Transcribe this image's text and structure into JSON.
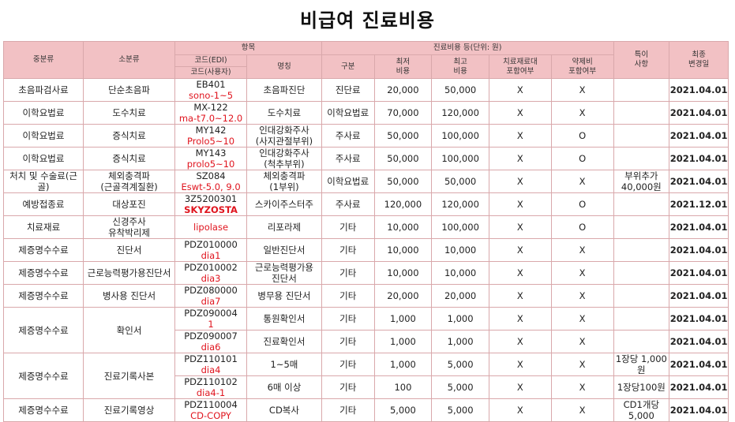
{
  "title": "비급여 진료비용",
  "headers": {
    "major": "중분류",
    "minor": "소분류",
    "item_group": "항목",
    "code_edi": "코드(EDI)",
    "code_internal": "코드(사용자)",
    "name": "명칭",
    "cost_group": "진료비용 등(단위: 원)",
    "category": "구분",
    "min_line1": "최저",
    "min_line2": "비용",
    "max_line1": "최고",
    "max_line2": "비용",
    "material_line1": "치료재료대",
    "material_line2": "포함여부",
    "drug_line1": "약제비",
    "drug_line2": "포함여부",
    "special_line1": "특이",
    "special_line2": "사항",
    "date_line1": "최종",
    "date_line2": "변경일"
  },
  "rows": {
    "r1": {
      "major": "초음파검사료",
      "minor": "단순초음파",
      "code1": "EB401",
      "code2": "sono-1~5",
      "name": "초음파진단",
      "cat": "진단료",
      "min": "20,000",
      "max": "50,000",
      "mat": "X",
      "drug": "X",
      "note": "",
      "date": "2021.04.01"
    },
    "r2": {
      "major": "이학요법료",
      "minor": "도수치료",
      "code1": "MX-122",
      "code2": "ma-t7.0~12.0",
      "name": "도수치료",
      "cat": "이학요법료",
      "min": "70,000",
      "max": "120,000",
      "mat": "X",
      "drug": "X",
      "note": "",
      "date": "2021.04.01"
    },
    "r3": {
      "major": "이학요법료",
      "minor": "증식치료",
      "code1": "MY142",
      "code2": "Prolo5~10",
      "name1": "인대강화주사",
      "name2": "(사지관절부위)",
      "cat": "주사료",
      "min": "50,000",
      "max": "100,000",
      "mat": "X",
      "drug": "O",
      "note": "",
      "date": "2021.04.01"
    },
    "r4": {
      "major": "이학요법료",
      "minor": "증식치료",
      "code1": "MY143",
      "code2": "prolo5~10",
      "name1": "인대강화주사",
      "name2": "(척추부위)",
      "cat": "주사료",
      "min": "50,000",
      "max": "100,000",
      "mat": "X",
      "drug": "O",
      "note": "",
      "date": "2021.04.01"
    },
    "r5": {
      "major": "처치 및 수술료(근골)",
      "minor1": "체외충격파",
      "minor2": "(근골격계질환)",
      "code1": "SZ084",
      "code2": "Eswt-5.0, 9.0",
      "name1": "체외충격파",
      "name2": "(1부위)",
      "cat": "이학요법료",
      "min": "50,000",
      "max": "50,000",
      "mat": "X",
      "drug": "X",
      "note1": "부위추가",
      "note2": "40,000원",
      "date": "2021.04.01"
    },
    "r6": {
      "major": "예방접종료",
      "minor": "대상포진",
      "code1": "3Z5200301",
      "code2": "SKYZOSTA",
      "name": "스카이주스터주",
      "cat": "주사료",
      "min": "120,000",
      "max": "120,000",
      "mat": "X",
      "drug": "O",
      "note": "",
      "date": "2021.12.01"
    },
    "r7": {
      "major": "치료재료",
      "minor1": "신경주사",
      "minor2": "유착박리제",
      "code1": "",
      "code2": "lipolase",
      "name": "리포라제",
      "cat": "기타",
      "min": "10,000",
      "max": "100,000",
      "mat": "X",
      "drug": "O",
      "note": "",
      "date": "2021.04.01"
    },
    "r8": {
      "major": "제증명수수료",
      "minor": "진단서",
      "code1": "PDZ010000",
      "code2": "dia1",
      "name": "일반진단서",
      "cat": "기타",
      "min": "10,000",
      "max": "10,000",
      "mat": "X",
      "drug": "X",
      "note": "",
      "date": "2021.04.01"
    },
    "r9": {
      "major": "제증명수수료",
      "minor": "근로능력평가용진단서",
      "code1": "PDZ010002",
      "code2": "dia3",
      "name1": "근로능력평가용",
      "name2": "진단서",
      "cat": "기타",
      "min": "10,000",
      "max": "10,000",
      "mat": "X",
      "drug": "X",
      "note": "",
      "date": "2021.04.01"
    },
    "r10": {
      "major": "제증명수수료",
      "minor": "병사용 진단서",
      "code1": "PDZ080000",
      "code2": "dia7",
      "name": "병무용 진단서",
      "cat": "기타",
      "min": "20,000",
      "max": "20,000",
      "mat": "X",
      "drug": "X",
      "note": "",
      "date": "2021.04.01"
    },
    "r11": {
      "major": "제증명수수료",
      "minor": "확인서",
      "code1": "PDZ090004",
      "code2": "1",
      "name": "통원확인서",
      "cat": "기타",
      "min": "1,000",
      "max": "1,000",
      "mat": "X",
      "drug": "X",
      "note": "",
      "date": "2021.04.01"
    },
    "r12": {
      "code1": "PDZ090007",
      "code2": "dia6",
      "name": "진료확인서",
      "cat": "기타",
      "min": "1,000",
      "max": "1,000",
      "mat": "X",
      "drug": "X",
      "note": "",
      "date": "2021.04.01"
    },
    "r13": {
      "major": "제증명수수료",
      "minor": "진료기록사본",
      "code1": "PDZ110101",
      "code2": "dia4",
      "name": "1~5매",
      "cat": "기타",
      "min": "1,000",
      "max": "5,000",
      "mat": "X",
      "drug": "X",
      "note": "1장당 1,000원",
      "date": "2021.04.01"
    },
    "r14": {
      "code1": "PDZ110102",
      "code2": "dia4-1",
      "name": "6매 이상",
      "cat": "기타",
      "min": "100",
      "max": "5,000",
      "mat": "X",
      "drug": "X",
      "note": "1장당100원",
      "date": "2021.04.01"
    },
    "r15": {
      "major": "제증명수수료",
      "minor": "진료기록영상",
      "code1": "PDZ110004",
      "code2": "CD-COPY",
      "name": "CD복사",
      "cat": "기타",
      "min": "5,000",
      "max": "5,000",
      "mat": "X",
      "drug": "X",
      "note1": "CD1개당",
      "note2": "5,000",
      "date": "2021.04.01"
    }
  },
  "colors": {
    "header_bg": "#f2c1c4",
    "border": "#d9a8ab",
    "code_red": "#e0141e"
  }
}
